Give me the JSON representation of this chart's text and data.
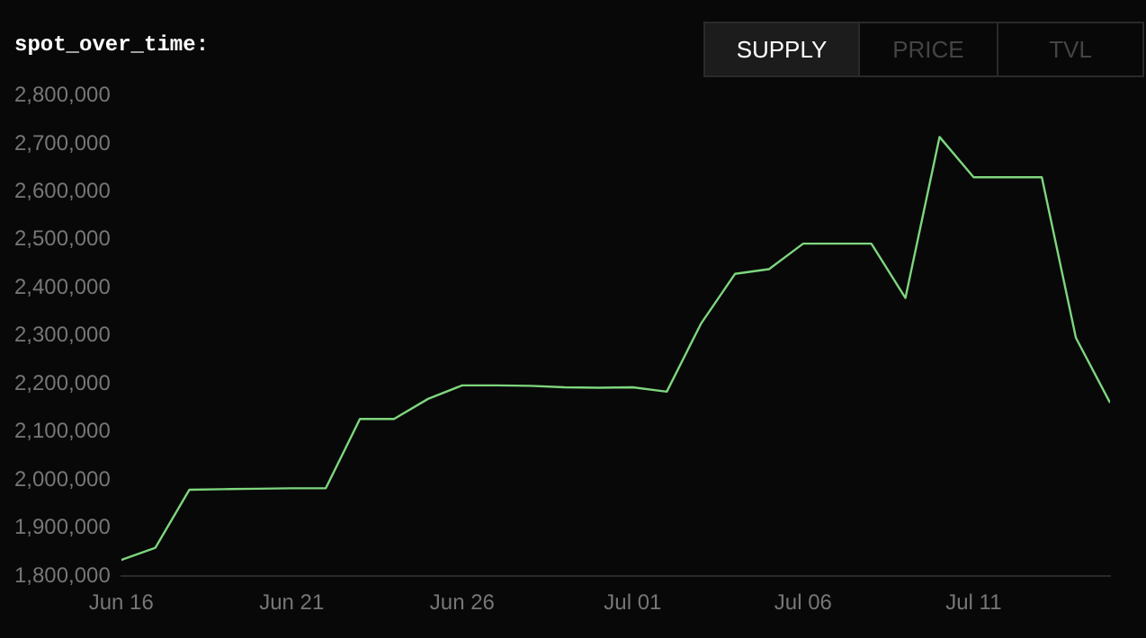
{
  "chart_data": {
    "type": "line",
    "title": "spot_over_time:",
    "annotations": [
      "SUPPLY",
      "PRICE",
      "TVL"
    ],
    "x": [
      "--06-16",
      "--06-17",
      "--06-18",
      "--06-19",
      "--06-20",
      "--06-21",
      "--06-22",
      "--06-23",
      "--06-24",
      "--06-25",
      "--06-26",
      "--06-27",
      "--06-28",
      "--06-29",
      "--06-30",
      "--07-01",
      "--07-02",
      "--07-03",
      "--07-04",
      "--07-05",
      "--07-06",
      "--07-07",
      "--07-08",
      "--07-09",
      "--07-10",
      "--07-11",
      "--07-12",
      "--07-13",
      "--07-14",
      "--07-15"
    ],
    "series": [
      {
        "color": "#7ed67e",
        "values": [
          1834000,
          1859000,
          1980000,
          1981000,
          1982000,
          1983000,
          1983000,
          2127000,
          2127000,
          2169000,
          2197000,
          2197000,
          2196000,
          2193000,
          2192000,
          2193000,
          2184000,
          2325000,
          2429000,
          2439000,
          2492000,
          2492000,
          2492000,
          2379000,
          2714000,
          2630000,
          2630000,
          2630000,
          2296000,
          2161000
        ]
      }
    ],
    "xticks": [
      {
        "value": "--06-16",
        "label": "Jun 16"
      },
      {
        "value": "--06-21",
        "label": "Jun 21"
      },
      {
        "value": "--06-26",
        "label": "Jun 26"
      },
      {
        "value": "--07-01",
        "label": "Jul 01"
      },
      {
        "value": "--07-06",
        "label": "Jul 06"
      },
      {
        "value": "--07-11",
        "label": "Jul 11"
      }
    ],
    "xlim": [
      "--06-16",
      "--07-15"
    ],
    "ylim": [
      1800000,
      2800000
    ],
    "yticks": [
      {
        "value": 1800000,
        "label": "1,800,000"
      },
      {
        "value": 1900000,
        "label": "1,900,000"
      },
      {
        "value": 2000000,
        "label": "2,000,000"
      },
      {
        "value": 2100000,
        "label": "2,100,000"
      },
      {
        "value": 2200000,
        "label": "2,200,000"
      },
      {
        "value": 2300000,
        "label": "2,300,000"
      },
      {
        "value": 2400000,
        "label": "2,400,000"
      },
      {
        "value": 2500000,
        "label": "2,500,000"
      },
      {
        "value": 2600000,
        "label": "2,600,000"
      },
      {
        "value": 2700000,
        "label": "2,700,000"
      },
      {
        "value": 2800000,
        "label": "2,800,000"
      }
    ],
    "grid": false,
    "legend": false,
    "marker": "none",
    "line_style": "solid"
  }
}
